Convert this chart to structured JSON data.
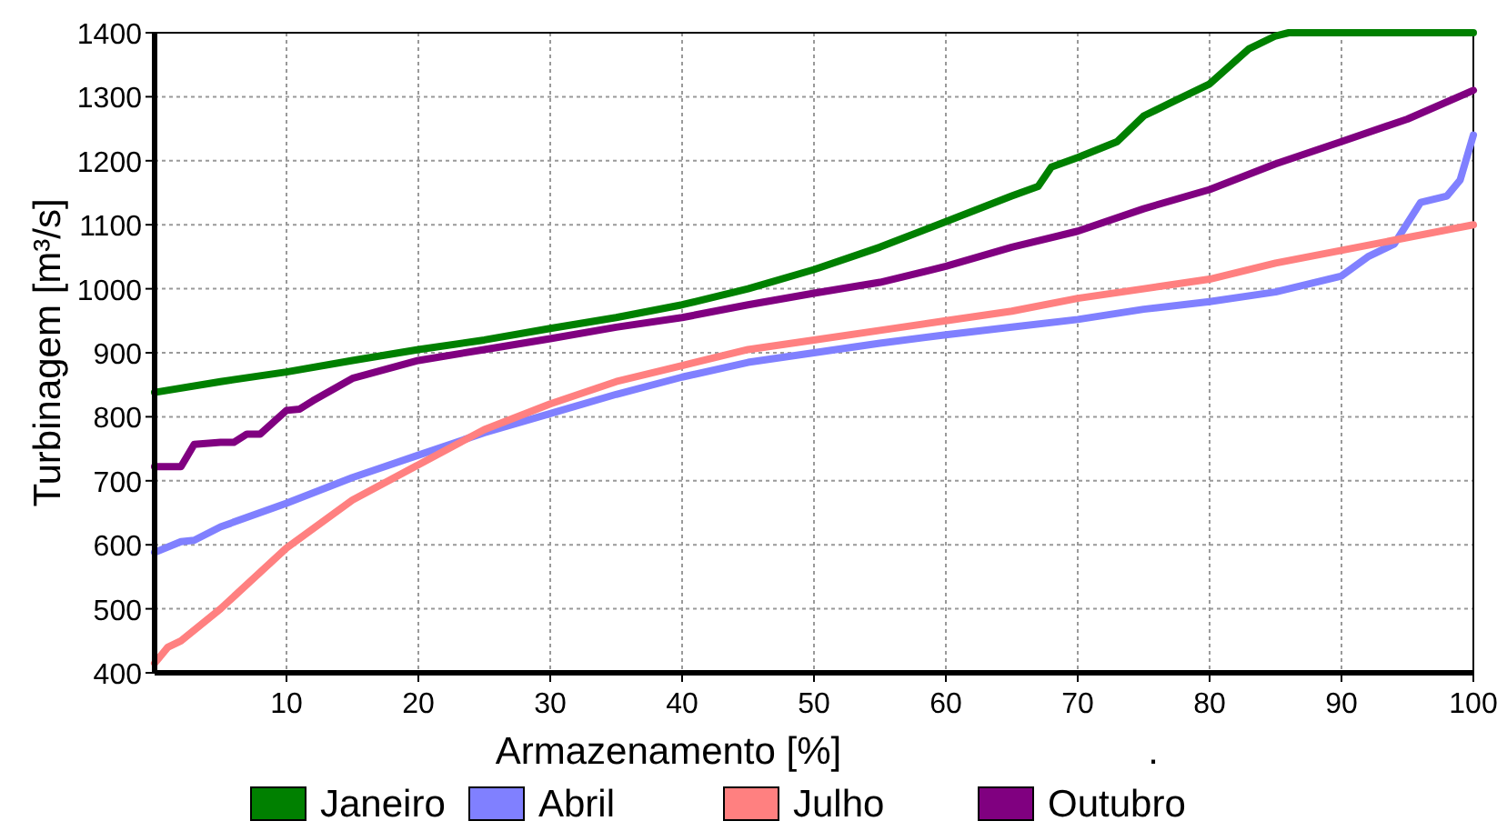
{
  "chart_data": {
    "type": "line",
    "xlabel": "Armazenamento [%]",
    "ylabel": "Turbinagem [m³/s]",
    "xlim": [
      0,
      100
    ],
    "xticks": [
      10,
      20,
      30,
      40,
      50,
      60,
      70,
      80,
      90,
      100
    ],
    "ylim": [
      400,
      1400
    ],
    "yticks": [
      400,
      500,
      600,
      700,
      800,
      900,
      1000,
      1100,
      1200,
      1300,
      1400
    ],
    "grid": true,
    "legend": "bottom",
    "line_style": "solid",
    "annotations": [
      "."
    ],
    "series": [
      {
        "name": "Janeiro",
        "color": "#008000",
        "x": [
          0,
          5,
          10,
          15,
          20,
          25,
          30,
          35,
          40,
          45,
          50,
          55,
          60,
          65,
          67,
          68,
          70,
          73,
          75,
          77,
          80,
          83,
          85,
          86,
          100
        ],
        "values": [
          838,
          855,
          870,
          888,
          905,
          920,
          938,
          955,
          975,
          1000,
          1030,
          1065,
          1105,
          1145,
          1160,
          1190,
          1205,
          1230,
          1270,
          1290,
          1320,
          1375,
          1395,
          1400,
          1400
        ]
      },
      {
        "name": "Abril",
        "color": "#8080ff",
        "x": [
          0,
          2,
          3,
          5,
          10,
          15,
          20,
          25,
          30,
          35,
          40,
          45,
          50,
          55,
          60,
          65,
          70,
          75,
          80,
          85,
          90,
          92,
          94,
          96,
          98,
          99,
          100
        ],
        "values": [
          588,
          605,
          607,
          628,
          665,
          705,
          740,
          775,
          805,
          835,
          862,
          885,
          900,
          915,
          928,
          940,
          952,
          968,
          980,
          995,
          1020,
          1050,
          1070,
          1135,
          1145,
          1170,
          1240
        ]
      },
      {
        "name": "Julho",
        "color": "#ff8080",
        "x": [
          0,
          1,
          2,
          5,
          10,
          15,
          20,
          25,
          30,
          35,
          40,
          45,
          50,
          55,
          60,
          65,
          70,
          75,
          80,
          85,
          90,
          95,
          100
        ],
        "values": [
          415,
          440,
          450,
          500,
          595,
          670,
          725,
          780,
          820,
          855,
          880,
          905,
          920,
          935,
          950,
          965,
          985,
          1000,
          1015,
          1040,
          1060,
          1080,
          1100
        ]
      },
      {
        "name": "Outubro",
        "color": "#800080",
        "x": [
          0,
          2,
          3,
          5,
          6,
          7,
          8,
          10,
          11,
          12,
          15,
          20,
          25,
          30,
          35,
          40,
          45,
          50,
          55,
          60,
          65,
          70,
          75,
          80,
          85,
          90,
          95,
          100
        ],
        "values": [
          722,
          722,
          757,
          760,
          760,
          773,
          773,
          810,
          812,
          825,
          860,
          888,
          905,
          922,
          940,
          955,
          975,
          993,
          1010,
          1035,
          1065,
          1090,
          1125,
          1155,
          1195,
          1230,
          1265,
          1310
        ]
      }
    ]
  }
}
